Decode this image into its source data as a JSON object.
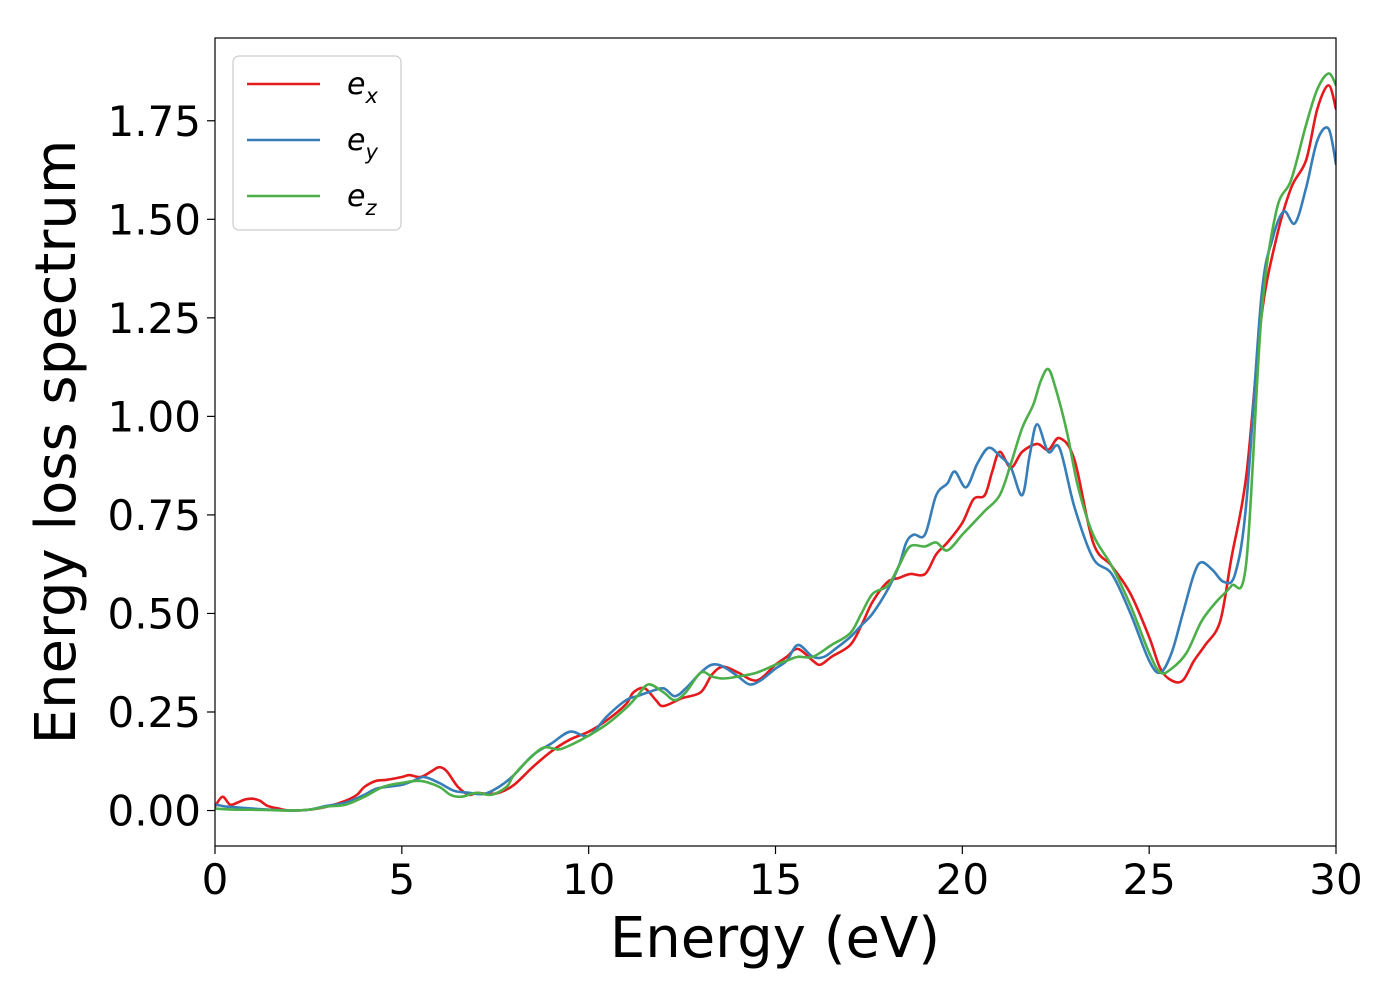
{
  "chart_data": {
    "type": "line",
    "title": "",
    "xlabel": "Energy (eV)",
    "ylabel": "Energy loss spectrum",
    "xlim": [
      0,
      30
    ],
    "ylim": [
      -0.09,
      1.96
    ],
    "xticks": [
      0,
      5,
      10,
      15,
      20,
      25,
      30
    ],
    "xtick_labels": [
      "0",
      "5",
      "10",
      "15",
      "20",
      "25",
      "30"
    ],
    "yticks": [
      0.0,
      0.25,
      0.5,
      0.75,
      1.0,
      1.25,
      1.5,
      1.75
    ],
    "ytick_labels": [
      "0.00",
      "0.25",
      "0.50",
      "0.75",
      "1.00",
      "1.25",
      "1.50",
      "1.75"
    ],
    "grid": false,
    "legend_position": "top-left",
    "series": [
      {
        "name": "e",
        "subscript": "x",
        "color": "#e41a1c",
        "x": [
          0,
          0.2,
          0.4,
          0.6,
          0.8,
          1.0,
          1.2,
          1.4,
          1.7,
          2.0,
          2.5,
          3.0,
          3.5,
          3.8,
          4.0,
          4.3,
          4.6,
          5.0,
          5.2,
          5.5,
          5.8,
          6.0,
          6.2,
          6.5,
          6.8,
          7.0,
          7.3,
          7.6,
          8.0,
          8.5,
          9.0,
          9.5,
          10.0,
          10.5,
          11.0,
          11.2,
          11.5,
          11.8,
          12.0,
          12.5,
          13.0,
          13.3,
          13.6,
          14.0,
          14.5,
          15.0,
          15.3,
          15.6,
          16.0,
          16.2,
          16.5,
          17.0,
          17.3,
          17.6,
          18.0,
          18.3,
          18.6,
          19.0,
          19.3,
          19.6,
          20.0,
          20.3,
          20.6,
          20.8,
          21.0,
          21.3,
          21.6,
          22.0,
          22.3,
          22.6,
          23.0,
          23.5,
          24.0,
          24.5,
          25.0,
          25.3,
          25.6,
          25.9,
          26.2,
          26.5,
          26.9,
          27.2,
          27.6,
          28.0,
          28.4,
          28.8,
          29.2,
          29.5,
          29.8,
          30.0
        ],
        "values": [
          0.01,
          0.035,
          0.015,
          0.02,
          0.028,
          0.03,
          0.025,
          0.012,
          0.005,
          0.0,
          0.002,
          0.01,
          0.025,
          0.04,
          0.06,
          0.075,
          0.078,
          0.085,
          0.09,
          0.085,
          0.1,
          0.11,
          0.1,
          0.06,
          0.04,
          0.045,
          0.042,
          0.045,
          0.065,
          0.11,
          0.15,
          0.18,
          0.2,
          0.23,
          0.27,
          0.3,
          0.31,
          0.28,
          0.265,
          0.285,
          0.3,
          0.345,
          0.365,
          0.35,
          0.33,
          0.37,
          0.39,
          0.41,
          0.38,
          0.37,
          0.39,
          0.42,
          0.47,
          0.53,
          0.58,
          0.59,
          0.6,
          0.6,
          0.65,
          0.68,
          0.73,
          0.79,
          0.8,
          0.86,
          0.91,
          0.87,
          0.91,
          0.93,
          0.915,
          0.945,
          0.89,
          0.68,
          0.62,
          0.55,
          0.44,
          0.36,
          0.33,
          0.33,
          0.38,
          0.42,
          0.48,
          0.64,
          0.85,
          1.25,
          1.45,
          1.58,
          1.65,
          1.78,
          1.84,
          1.78
        ]
      },
      {
        "name": "e",
        "subscript": "y",
        "color": "#377eb8",
        "x": [
          0,
          0.3,
          0.6,
          1.0,
          1.5,
          2.0,
          2.5,
          3.0,
          3.5,
          4.0,
          4.3,
          4.6,
          5.0,
          5.3,
          5.6,
          6.0,
          6.4,
          6.8,
          7.2,
          7.6,
          8.0,
          8.5,
          9.0,
          9.5,
          10.0,
          10.5,
          11.0,
          11.3,
          11.6,
          12.0,
          12.3,
          12.6,
          13.0,
          13.3,
          13.6,
          14.0,
          14.3,
          14.6,
          15.0,
          15.3,
          15.6,
          16.0,
          16.3,
          16.6,
          17.0,
          17.3,
          17.6,
          18.0,
          18.3,
          18.5,
          18.7,
          19.0,
          19.3,
          19.6,
          19.8,
          20.1,
          20.4,
          20.7,
          21.0,
          21.3,
          21.6,
          21.8,
          22.0,
          22.3,
          22.6,
          23.0,
          23.5,
          24.0,
          24.5,
          25.0,
          25.3,
          25.6,
          25.9,
          26.2,
          26.4,
          26.7,
          27.0,
          27.3,
          27.6,
          28.0,
          28.3,
          28.6,
          28.9,
          29.2,
          29.5,
          29.8,
          30.0
        ],
        "values": [
          0.015,
          0.01,
          0.008,
          0.005,
          0.002,
          0.0,
          0.002,
          0.012,
          0.02,
          0.04,
          0.055,
          0.06,
          0.065,
          0.075,
          0.085,
          0.07,
          0.05,
          0.045,
          0.042,
          0.06,
          0.09,
          0.14,
          0.17,
          0.2,
          0.19,
          0.24,
          0.28,
          0.29,
          0.3,
          0.31,
          0.29,
          0.31,
          0.35,
          0.37,
          0.365,
          0.34,
          0.32,
          0.33,
          0.36,
          0.38,
          0.42,
          0.39,
          0.39,
          0.41,
          0.44,
          0.47,
          0.5,
          0.56,
          0.62,
          0.68,
          0.7,
          0.7,
          0.8,
          0.83,
          0.86,
          0.82,
          0.88,
          0.92,
          0.9,
          0.87,
          0.8,
          0.9,
          0.98,
          0.91,
          0.92,
          0.77,
          0.64,
          0.6,
          0.5,
          0.38,
          0.35,
          0.4,
          0.5,
          0.6,
          0.63,
          0.61,
          0.58,
          0.6,
          0.78,
          1.3,
          1.45,
          1.52,
          1.49,
          1.58,
          1.7,
          1.73,
          1.64
        ]
      },
      {
        "name": "e",
        "subscript": "z",
        "color": "#4daf4a",
        "x": [
          0,
          0.3,
          0.6,
          1.0,
          1.5,
          2.0,
          2.5,
          3.0,
          3.5,
          4.0,
          4.5,
          5.0,
          5.5,
          6.0,
          6.3,
          6.6,
          7.0,
          7.4,
          7.8,
          8.0,
          8.4,
          8.8,
          9.2,
          9.6,
          10.0,
          10.5,
          11.0,
          11.3,
          11.6,
          12.0,
          12.3,
          12.6,
          13.0,
          13.3,
          13.6,
          14.0,
          14.5,
          15.0,
          15.3,
          15.6,
          16.0,
          16.5,
          17.0,
          17.3,
          17.6,
          18.0,
          18.3,
          18.6,
          19.0,
          19.3,
          19.6,
          20.0,
          20.3,
          20.6,
          21.0,
          21.3,
          21.6,
          21.9,
          22.1,
          22.3,
          22.5,
          22.8,
          23.1,
          23.5,
          24.0,
          24.5,
          25.0,
          25.3,
          25.6,
          26.0,
          26.4,
          26.8,
          27.2,
          27.6,
          28.0,
          28.4,
          28.8,
          29.2,
          29.5,
          29.8,
          30.0
        ],
        "values": [
          0.005,
          0.003,
          0.002,
          0.002,
          0.001,
          0.0,
          0.002,
          0.01,
          0.015,
          0.035,
          0.06,
          0.07,
          0.075,
          0.06,
          0.04,
          0.035,
          0.045,
          0.04,
          0.06,
          0.09,
          0.13,
          0.16,
          0.155,
          0.17,
          0.19,
          0.22,
          0.26,
          0.29,
          0.32,
          0.3,
          0.28,
          0.3,
          0.35,
          0.34,
          0.335,
          0.34,
          0.35,
          0.37,
          0.38,
          0.39,
          0.39,
          0.42,
          0.45,
          0.5,
          0.55,
          0.57,
          0.62,
          0.67,
          0.67,
          0.68,
          0.66,
          0.7,
          0.73,
          0.76,
          0.8,
          0.88,
          0.97,
          1.03,
          1.09,
          1.12,
          1.07,
          0.96,
          0.82,
          0.7,
          0.62,
          0.52,
          0.4,
          0.35,
          0.36,
          0.4,
          0.48,
          0.53,
          0.57,
          0.63,
          1.25,
          1.52,
          1.6,
          1.74,
          1.83,
          1.87,
          1.84
        ]
      }
    ]
  }
}
